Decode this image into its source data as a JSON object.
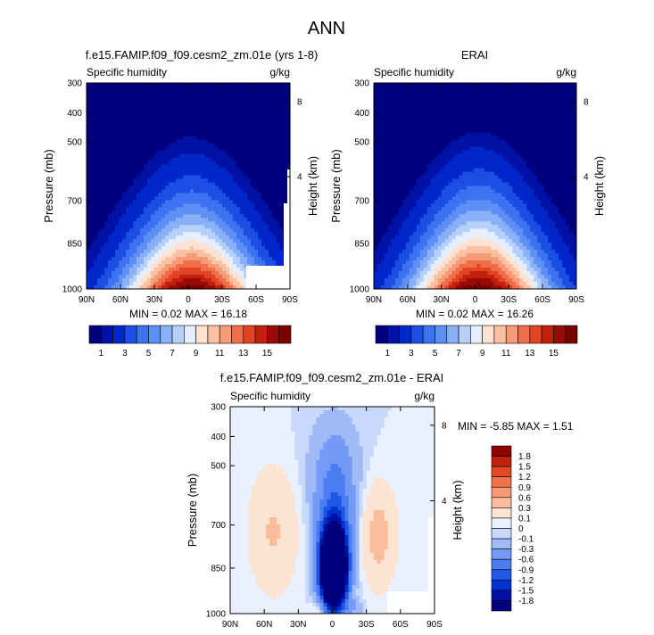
{
  "figure": {
    "title": "ANN"
  },
  "colors": {
    "abs_levels": [
      "#00007f",
      "#0011a6",
      "#0027c9",
      "#1b4fe3",
      "#3d72f0",
      "#5d8ff5",
      "#8ab0f8",
      "#b7cffb",
      "#e5efff",
      "#fde2d2",
      "#f9c0a2",
      "#f59b77",
      "#ef6d48",
      "#e24325",
      "#c3210f",
      "#9b0b05",
      "#7a0000"
    ],
    "diff_levels": [
      "#00007f",
      "#0011a6",
      "#0032d0",
      "#1f57e6",
      "#4a7cf2",
      "#739af5",
      "#9fbaf7",
      "#c8d9fb",
      "#e8f1fd",
      "#fde3d2",
      "#f9bd9b",
      "#f59a74",
      "#ef7449",
      "#e24b27",
      "#c3210f",
      "#8f0000"
    ]
  },
  "panels": [
    {
      "title": "f.e15.FAMIP.f09_f09.cesm2_zm.01e (yrs 1-8)",
      "left_label": "Specific humidity",
      "right_label": "g/kg",
      "min_text": "MIN =  0.02  MAX =  16.18"
    },
    {
      "title": "ERAI",
      "left_label": "Specific humidity",
      "right_label": "g/kg",
      "min_text": "MIN =  0.02  MAX =  16.26"
    },
    {
      "title": "f.e15.FAMIP.f09_f09.cesm2_zm.01e - ERAI",
      "left_label": "Specific humidity",
      "right_label": "g/kg",
      "min_text": "MIN =  -5.85  MAX =   1.51"
    }
  ],
  "chart_data": [
    {
      "type": "heatmap",
      "title": "f.e15.FAMIP.f09_f09.cesm2_zm.01e (yrs 1-8)",
      "variable": "Specific humidity",
      "units": "g/kg",
      "x": [
        "90N",
        "60N",
        "30N",
        "0",
        "30S",
        "60S",
        "90S"
      ],
      "ylabel": "Pressure (mb)",
      "y": [
        "300",
        "400",
        "500",
        "700",
        "850",
        "1000"
      ],
      "ylabel_right": "Height (km)",
      "y_right": [
        "8",
        "4"
      ],
      "min": 0.02,
      "max": 16.18,
      "colorbar": [
        "1",
        "3",
        "5",
        "7",
        "9",
        "11",
        "13",
        "15"
      ]
    },
    {
      "type": "heatmap",
      "title": "ERAI",
      "variable": "Specific humidity",
      "units": "g/kg",
      "x": [
        "90N",
        "60N",
        "30N",
        "0",
        "30S",
        "60S",
        "90S"
      ],
      "ylabel": "Pressure (mb)",
      "y": [
        "300",
        "400",
        "500",
        "700",
        "850",
        "1000"
      ],
      "ylabel_right": "Height (km)",
      "y_right": [
        "8",
        "4"
      ],
      "min": 0.02,
      "max": 16.26,
      "colorbar": [
        "1",
        "3",
        "5",
        "7",
        "9",
        "11",
        "13",
        "15"
      ]
    },
    {
      "type": "heatmap",
      "title": "f.e15.FAMIP.f09_f09.cesm2_zm.01e - ERAI",
      "variable": "Specific humidity",
      "units": "g/kg",
      "x": [
        "90N",
        "60N",
        "30N",
        "0",
        "30S",
        "60S",
        "90S"
      ],
      "ylabel": "Pressure (mb)",
      "y": [
        "300",
        "400",
        "500",
        "700",
        "850",
        "1000"
      ],
      "ylabel_right": "Height (km)",
      "y_right": [
        "8",
        "4"
      ],
      "min": -5.85,
      "max": 1.51,
      "colorbar": [
        "1.8",
        "1.5",
        "1.2",
        "0.9",
        "0.6",
        "0.3",
        "0.1",
        "0",
        "-0.1",
        "-0.3",
        "-0.6",
        "-0.9",
        "-1.2",
        "-1.5",
        "-1.8"
      ]
    }
  ]
}
